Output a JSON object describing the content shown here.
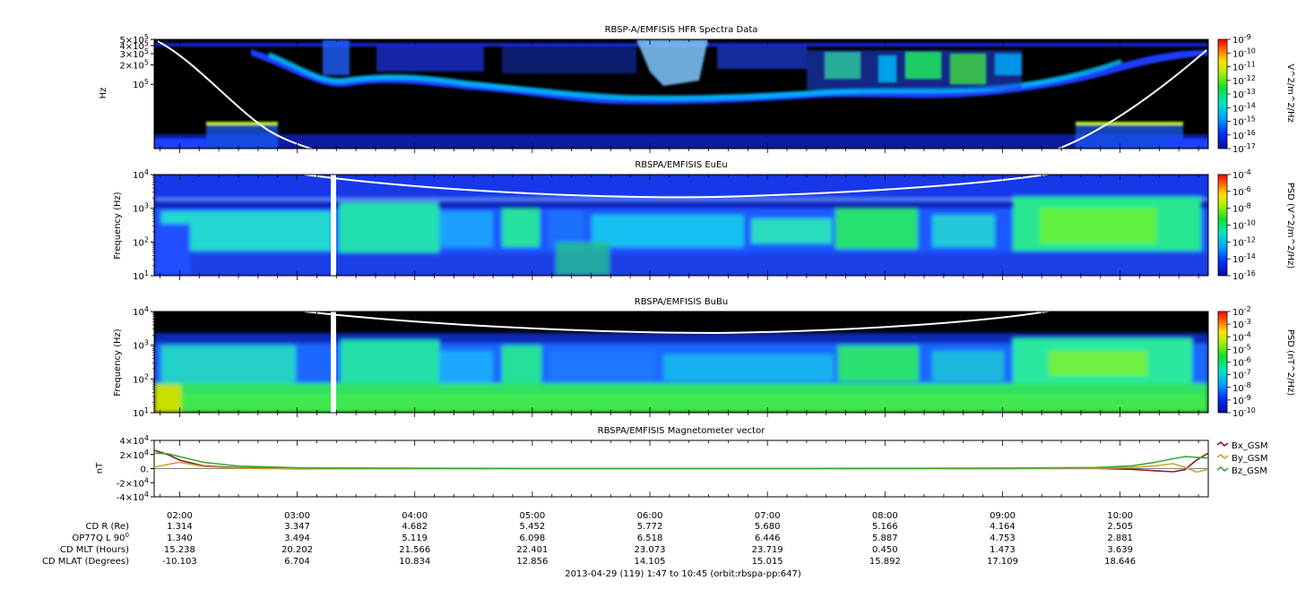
{
  "time_axis": {
    "labels": [
      "02:00",
      "03:00",
      "04:00",
      "05:00",
      "06:00",
      "07:00",
      "08:00",
      "09:00",
      "10:00"
    ],
    "hours": [
      2,
      3,
      4,
      5,
      6,
      7,
      8,
      9,
      10
    ],
    "start_hour": 1.7833,
    "end_hour": 10.75,
    "footer": "2013-04-29 (119) 1:47 to 10:45 (orbit:rbspa-pp:647)"
  },
  "ephemeris": {
    "rows": [
      {
        "label": "CD R (Re)",
        "values": [
          "1.314",
          "3.347",
          "4.682",
          "5.452",
          "5.772",
          "5.680",
          "5.166",
          "4.164",
          "2.505"
        ]
      },
      {
        "label": "OP77Q L 90",
        "sup": "0",
        "values": [
          "1.340",
          "3.494",
          "5.119",
          "6.098",
          "6.518",
          "6.446",
          "5.887",
          "4.753",
          "2.881"
        ]
      },
      {
        "label": "CD MLT (Hours)",
        "values": [
          "15.238",
          "20.202",
          "21.566",
          "22.401",
          "23.073",
          "23.719",
          "0.450",
          "1.473",
          "3.639"
        ]
      },
      {
        "label": "CD MLAT (Degrees)",
        "values": [
          "-10.103",
          "6.704",
          "10.834",
          "12.856",
          "14.105",
          "15.015",
          "15.892",
          "17.109",
          "18.646"
        ]
      }
    ]
  },
  "chart_data": [
    {
      "type": "heatmap",
      "title": "RBSP-A/EMFISIS  HFR Spectra Data",
      "ylabel": "Hz",
      "y_scale": "log",
      "ylim": [
        10000,
        500000
      ],
      "y_ticks": [
        {
          "value": 500000,
          "base": "5×10",
          "exp": "5"
        },
        {
          "value": 400000,
          "base": "4×10",
          "exp": "5"
        },
        {
          "value": 300000,
          "base": "3×10",
          "exp": "5"
        },
        {
          "value": 200000,
          "base": "2×10",
          "exp": "5"
        },
        {
          "value": 100000,
          "base": "10",
          "exp": "5"
        }
      ],
      "colorbar": {
        "label": "V^2/m^2/Hz",
        "scale": "log",
        "range_exp": [
          -17,
          -9
        ],
        "ticks": [
          {
            "base": "10",
            "exp": "-9"
          },
          {
            "base": "10",
            "exp": "-10"
          },
          {
            "base": "10",
            "exp": "-11"
          },
          {
            "base": "10",
            "exp": "-12"
          },
          {
            "base": "10",
            "exp": "-13"
          },
          {
            "base": "10",
            "exp": "-14"
          },
          {
            "base": "10",
            "exp": "-15"
          },
          {
            "base": "10",
            "exp": "-16"
          },
          {
            "base": "10",
            "exp": "-17"
          }
        ]
      }
    },
    {
      "type": "heatmap",
      "title": "RBSPA/EMFISIS  EuEu",
      "ylabel": "Frequency (Hz)",
      "y_scale": "log",
      "ylim": [
        10,
        10000
      ],
      "y_ticks": [
        {
          "value": 10000,
          "base": "10",
          "exp": "4"
        },
        {
          "value": 1000,
          "base": "10",
          "exp": "3"
        },
        {
          "value": 100,
          "base": "10",
          "exp": "2"
        },
        {
          "value": 10,
          "base": "10",
          "exp": "1"
        }
      ],
      "colorbar": {
        "label": "PSD (V^2/m^2/Hz)",
        "scale": "log",
        "range_exp": [
          -16,
          -4
        ],
        "ticks": [
          {
            "base": "10",
            "exp": "-4"
          },
          {
            "base": "10",
            "exp": "-6"
          },
          {
            "base": "10",
            "exp": "-8"
          },
          {
            "base": "10",
            "exp": "-10"
          },
          {
            "base": "10",
            "exp": "-12"
          },
          {
            "base": "10",
            "exp": "-14"
          },
          {
            "base": "10",
            "exp": "-16"
          }
        ]
      }
    },
    {
      "type": "heatmap",
      "title": "RBSPA/EMFISIS  BuBu",
      "ylabel": "Frequency (Hz)",
      "y_scale": "log",
      "ylim": [
        10,
        10000
      ],
      "y_ticks": [
        {
          "value": 10000,
          "base": "10",
          "exp": "4"
        },
        {
          "value": 1000,
          "base": "10",
          "exp": "3"
        },
        {
          "value": 100,
          "base": "10",
          "exp": "2"
        },
        {
          "value": 10,
          "base": "10",
          "exp": "1"
        }
      ],
      "colorbar": {
        "label": "PSD (nT^2/Hz)",
        "scale": "log",
        "range_exp": [
          -10,
          -2
        ],
        "ticks": [
          {
            "base": "10",
            "exp": "-2"
          },
          {
            "base": "10",
            "exp": "-3"
          },
          {
            "base": "10",
            "exp": "-4"
          },
          {
            "base": "10",
            "exp": "-5"
          },
          {
            "base": "10",
            "exp": "-6"
          },
          {
            "base": "10",
            "exp": "-7"
          },
          {
            "base": "10",
            "exp": "-8"
          },
          {
            "base": "10",
            "exp": "-9"
          },
          {
            "base": "10",
            "exp": "-10"
          }
        ]
      }
    },
    {
      "type": "line",
      "title": "RBSPA/EMFISIS  Magnetometer vector",
      "ylabel": "nT",
      "ylim": [
        -40000,
        40000
      ],
      "y_ticks": [
        {
          "value": 40000,
          "text": "4×10",
          "exp": "4"
        },
        {
          "value": 20000,
          "text": "2×10",
          "exp": "4"
        },
        {
          "value": 0,
          "text": "0.",
          "exp": ""
        },
        {
          "value": -20000,
          "text": "-2×10",
          "exp": "4"
        },
        {
          "value": -40000,
          "text": "-4×10",
          "exp": "4"
        }
      ],
      "x": [
        1.7833,
        1.9,
        2.0,
        2.2,
        2.5,
        3.0,
        4.0,
        5.0,
        6.0,
        7.0,
        8.0,
        9.0,
        9.8,
        10.1,
        10.3,
        10.45,
        10.55,
        10.65,
        10.75
      ],
      "series": [
        {
          "name": "Bx_GSM",
          "color": "#8b1a1a",
          "values": [
            26000,
            20000,
            12000,
            4000,
            1200,
            400,
            100,
            50,
            50,
            80,
            100,
            150,
            300,
            -1000,
            -3000,
            -4500,
            -1500,
            12000,
            22000
          ]
        },
        {
          "name": "By_GSM",
          "color": "#c8a23c",
          "values": [
            2000,
            6000,
            9000,
            3000,
            500,
            -500,
            -300,
            -200,
            -200,
            -150,
            -100,
            0,
            200,
            1500,
            4000,
            7000,
            2000,
            -5000,
            -1000
          ]
        },
        {
          "name": "Bz_GSM",
          "color": "#3aa63a",
          "values": [
            22000,
            21000,
            17000,
            9000,
            3500,
            1200,
            500,
            300,
            250,
            300,
            400,
            800,
            1500,
            4000,
            9000,
            14000,
            17000,
            16000,
            15000
          ]
        }
      ]
    }
  ]
}
